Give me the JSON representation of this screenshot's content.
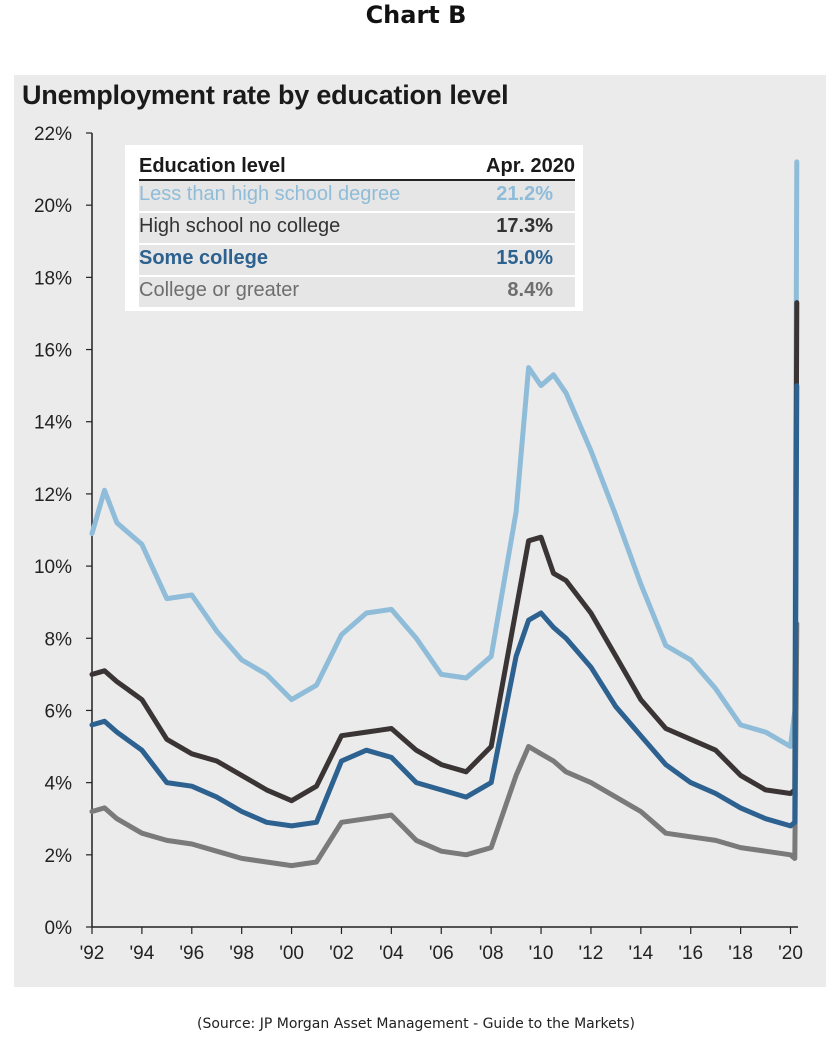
{
  "header": "Chart B",
  "source_note": "(Source: JP Morgan Asset Management - Guide to the Markets)",
  "colors": {
    "less_than_hs": "#8fbcd8",
    "hs_no_college": "#3a3434",
    "some_college": "#2c6190",
    "college_plus": "#7a7a7a",
    "panel_bg": "#ebebeb"
  },
  "chart_data": {
    "type": "line",
    "title": "Unemployment rate by education level",
    "xlabel": "",
    "ylabel": "",
    "ylim": [
      0,
      22
    ],
    "xlim": [
      1992,
      2020.3
    ],
    "y_ticks": [
      "0%",
      "2%",
      "4%",
      "6%",
      "8%",
      "10%",
      "12%",
      "14%",
      "16%",
      "18%",
      "20%",
      "22%"
    ],
    "x_ticks": [
      "'92",
      "'94",
      "'96",
      "'98",
      "'00",
      "'02",
      "'04",
      "'06",
      "'08",
      "'10",
      "'12",
      "'14",
      "'16",
      "'18",
      "'20"
    ],
    "grid": false,
    "legend": {
      "position": "top-left",
      "header_label": "Education level",
      "header_value": "Apr. 2020",
      "rows": [
        {
          "label": "Less than high school degree",
          "value": "21.2%"
        },
        {
          "label": "High school no college",
          "value": "17.3%"
        },
        {
          "label": "Some college",
          "value": "15.0%"
        },
        {
          "label": "College or greater",
          "value": "8.4%"
        }
      ]
    },
    "series": [
      {
        "name": "Less than high school degree",
        "x": [
          1992,
          1992.5,
          1993,
          1994,
          1995,
          1996,
          1997,
          1998,
          1999,
          2000,
          2001,
          2002,
          2003,
          2004,
          2005,
          2006,
          2007,
          2008,
          2009,
          2009.5,
          2010,
          2010.5,
          2011,
          2012,
          2013,
          2014,
          2015,
          2016,
          2017,
          2018,
          2019,
          2020,
          2020.17,
          2020.25
        ],
        "y": [
          10.9,
          12.1,
          11.2,
          10.6,
          9.1,
          9.2,
          8.2,
          7.4,
          7.0,
          6.3,
          6.7,
          8.1,
          8.7,
          8.8,
          8.0,
          7.0,
          6.9,
          7.5,
          11.5,
          15.5,
          15.0,
          15.3,
          14.8,
          13.2,
          11.4,
          9.5,
          7.8,
          7.4,
          6.6,
          5.6,
          5.4,
          5.0,
          6.0,
          21.2
        ]
      },
      {
        "name": "High school no college",
        "x": [
          1992,
          1992.5,
          1993,
          1994,
          1995,
          1996,
          1997,
          1998,
          1999,
          2000,
          2001,
          2002,
          2003,
          2004,
          2005,
          2006,
          2007,
          2008,
          2009,
          2009.5,
          2010,
          2010.5,
          2011,
          2012,
          2013,
          2014,
          2015,
          2016,
          2017,
          2018,
          2019,
          2020,
          2020.17,
          2020.25
        ],
        "y": [
          7.0,
          7.1,
          6.8,
          6.3,
          5.2,
          4.8,
          4.6,
          4.2,
          3.8,
          3.5,
          3.9,
          5.3,
          5.4,
          5.5,
          4.9,
          4.5,
          4.3,
          5.0,
          8.8,
          10.7,
          10.8,
          9.8,
          9.6,
          8.7,
          7.5,
          6.3,
          5.5,
          5.2,
          4.9,
          4.2,
          3.8,
          3.7,
          3.8,
          17.3
        ]
      },
      {
        "name": "Some college",
        "x": [
          1992,
          1992.5,
          1993,
          1994,
          1995,
          1996,
          1997,
          1998,
          1999,
          2000,
          2001,
          2002,
          2003,
          2004,
          2005,
          2006,
          2007,
          2008,
          2009,
          2009.5,
          2010,
          2010.5,
          2011,
          2012,
          2013,
          2014,
          2015,
          2016,
          2017,
          2018,
          2019,
          2020,
          2020.17,
          2020.25
        ],
        "y": [
          5.6,
          5.7,
          5.4,
          4.9,
          4.0,
          3.9,
          3.6,
          3.2,
          2.9,
          2.8,
          2.9,
          4.6,
          4.9,
          4.7,
          4.0,
          3.8,
          3.6,
          4.0,
          7.5,
          8.5,
          8.7,
          8.3,
          8.0,
          7.2,
          6.1,
          5.3,
          4.5,
          4.0,
          3.7,
          3.3,
          3.0,
          2.8,
          2.9,
          15.0
        ]
      },
      {
        "name": "College or greater",
        "x": [
          1992,
          1992.5,
          1993,
          1994,
          1995,
          1996,
          1997,
          1998,
          1999,
          2000,
          2001,
          2002,
          2003,
          2004,
          2005,
          2006,
          2007,
          2008,
          2009,
          2009.5,
          2010,
          2010.5,
          2011,
          2012,
          2013,
          2014,
          2015,
          2016,
          2017,
          2018,
          2019,
          2020,
          2020.17,
          2020.25
        ],
        "y": [
          3.2,
          3.3,
          3.0,
          2.6,
          2.4,
          2.3,
          2.1,
          1.9,
          1.8,
          1.7,
          1.8,
          2.9,
          3.0,
          3.1,
          2.4,
          2.1,
          2.0,
          2.2,
          4.2,
          5.0,
          4.8,
          4.6,
          4.3,
          4.0,
          3.6,
          3.2,
          2.6,
          2.5,
          2.4,
          2.2,
          2.1,
          2.0,
          1.9,
          8.4
        ]
      }
    ]
  }
}
